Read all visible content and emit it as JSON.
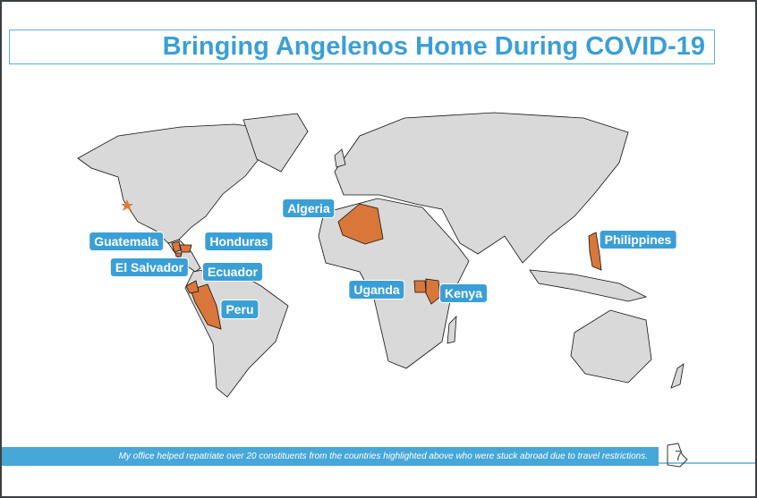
{
  "title": "Bringing Angelenos Home During COVID-19",
  "countries": [
    "Guatemala",
    "Honduras",
    "El Salvador",
    "Ecuador",
    "Peru",
    "Algeria",
    "Uganda",
    "Kenya",
    "Philippines"
  ],
  "caption": "My office helped repatriate over 20 constituents from the countries highlighted above who were stuck abroad due to travel restrictions.",
  "page_number": "7"
}
